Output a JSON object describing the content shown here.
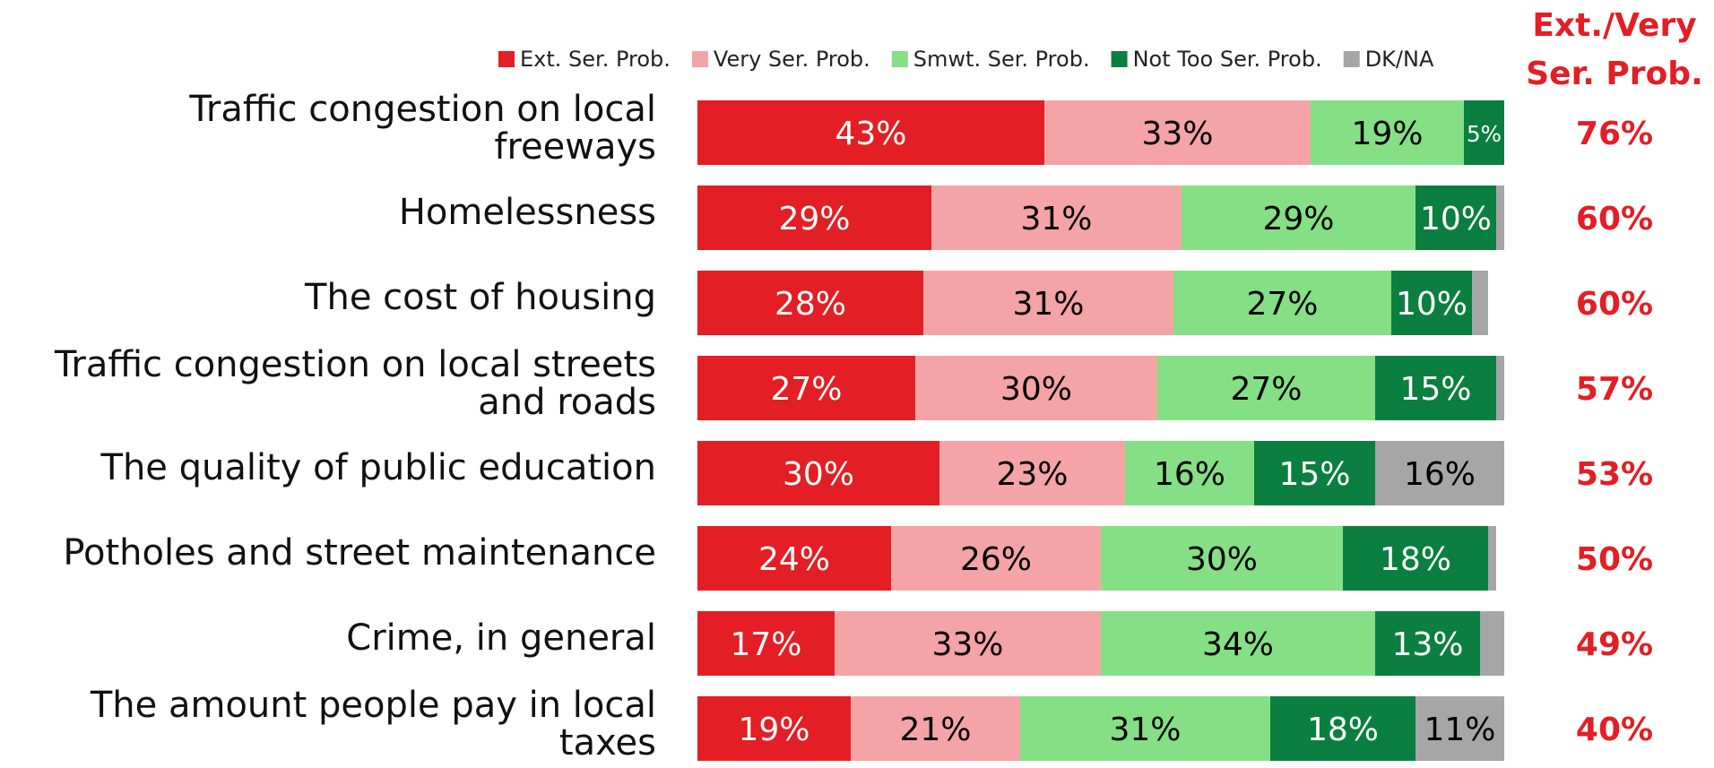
{
  "chart_data": {
    "type": "stacked-bar-horizontal",
    "categories": [
      "Traffic congestion on local freeways",
      "Homelessness",
      "The cost of housing",
      "Traffic congestion on local streets and roads",
      "The quality of public education",
      "Potholes and street maintenance",
      "Crime, in general",
      "The amount people pay in local taxes"
    ],
    "series": [
      {
        "name": "Ext. Ser. Prob.",
        "color": "#e31e24",
        "label_color": "#ffffff",
        "values": [
          43,
          29,
          28,
          27,
          30,
          24,
          17,
          19
        ],
        "value_labels": [
          "43%",
          "29%",
          "28%",
          "27%",
          "30%",
          "24%",
          "17%",
          "19%"
        ]
      },
      {
        "name": "Very Ser. Prob.",
        "color": "#f4a4a6",
        "label_color": "#000000",
        "values": [
          33,
          31,
          31,
          30,
          23,
          26,
          33,
          21
        ],
        "value_labels": [
          "33%",
          "31%",
          "31%",
          "30%",
          "23%",
          "26%",
          "33%",
          "21%"
        ]
      },
      {
        "name": "Smwt. Ser. Prob.",
        "color": "#85e085",
        "label_color": "#000000",
        "values": [
          19,
          29,
          27,
          27,
          16,
          30,
          34,
          31
        ],
        "value_labels": [
          "19%",
          "29%",
          "27%",
          "27%",
          "16%",
          "30%",
          "34%",
          "31%"
        ]
      },
      {
        "name": "Not Too Ser. Prob.",
        "color": "#0a7f3f",
        "label_color": "#ffffff",
        "values": [
          5,
          10,
          10,
          15,
          15,
          18,
          13,
          18
        ],
        "value_labels": [
          "5%",
          "10%",
          "10%",
          "15%",
          "15%",
          "18%",
          "13%",
          "18%"
        ]
      },
      {
        "name": "DK/NA",
        "color": "#a6a6a6",
        "label_color": "#000000",
        "values": [
          0,
          1,
          2,
          1,
          16,
          1,
          3,
          11
        ],
        "value_labels": [
          null,
          null,
          null,
          null,
          "16%",
          null,
          null,
          "11%"
        ]
      }
    ],
    "xlim": [
      0,
      100
    ],
    "net_header": [
      "Ext./Very",
      "Ser. Prob."
    ],
    "net_color": "#e31e24",
    "net_values": [
      76,
      60,
      60,
      57,
      53,
      50,
      49,
      40
    ],
    "net_labels": [
      "76%",
      "60%",
      "60%",
      "57%",
      "53%",
      "50%",
      "49%",
      "40%"
    ]
  }
}
